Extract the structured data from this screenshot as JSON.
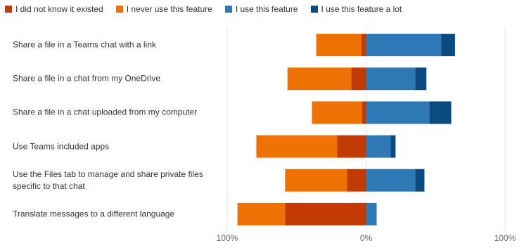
{
  "chart_data": {
    "type": "diverging-bar",
    "categories": [
      "Share a file in a Teams chat with a link",
      "Share a file in a chat from my OneDrive",
      "Share a file in a chat uploaded from my computer",
      "Use Teams included apps",
      "Use the Files tab to manage and share private files specific to that chat",
      "Translate messages to a different language"
    ],
    "series": [
      {
        "name": "I did not know it existed",
        "color": "#c23b05",
        "values": [
          -3.5,
          -10.6,
          -3,
          -20.8,
          -13.7,
          -58.2
        ]
      },
      {
        "name": "I never use this feature",
        "color": "#ee7203",
        "values": [
          -32.4,
          -46,
          -36,
          -58.2,
          -44.6,
          -34.4
        ]
      },
      {
        "name": "I use this feature",
        "color": "#2e79b5",
        "values": [
          54,
          35.4,
          45.6,
          17.7,
          35.4,
          7.6
        ]
      },
      {
        "name": "I use this feature a lot",
        "color": "#0b4a7e",
        "values": [
          10,
          8,
          15.7,
          3.5,
          6.6,
          0
        ]
      }
    ],
    "xlim": [
      -100,
      100
    ],
    "xticks": [
      {
        "value": -100,
        "label": "100%"
      },
      {
        "value": 0,
        "label": "0%"
      },
      {
        "value": 100,
        "label": "100%"
      }
    ],
    "grid": true
  }
}
